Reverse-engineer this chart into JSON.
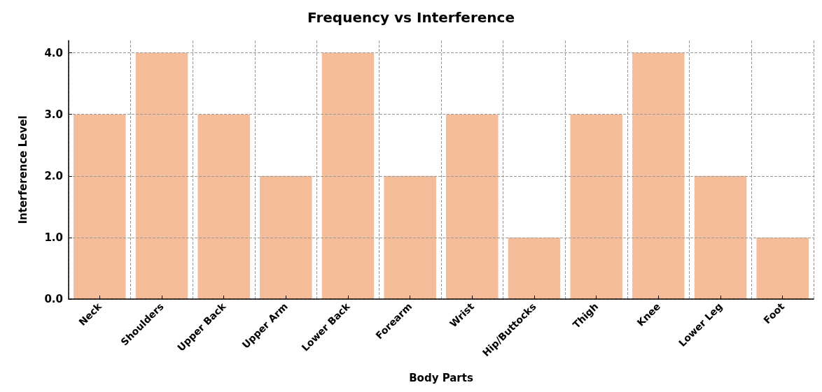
{
  "chart_data": {
    "type": "bar",
    "title": "Frequency vs Interference",
    "xlabel": "Body Parts",
    "ylabel": "Interference Level",
    "categories": [
      "Neck",
      "Shoulders",
      "Upper Back",
      "Upper Arm",
      "Lower Back",
      "Forearm",
      "Wrist",
      "Hip/Buttocks",
      "Thigh",
      "Knee",
      "Lower Leg",
      "Foot"
    ],
    "values": [
      3,
      4,
      3,
      2,
      4,
      2,
      3,
      1,
      3,
      4,
      2,
      1
    ],
    "color": "#f4bc98",
    "ylim": [
      0,
      4.2
    ],
    "yticks": [
      {
        "value": 0,
        "label": "0.0"
      },
      {
        "value": 1,
        "label": "1.0"
      },
      {
        "value": 2,
        "label": "2.0"
      },
      {
        "value": 3,
        "label": "3.0"
      },
      {
        "value": 4,
        "label": "4.0"
      }
    ],
    "grid": true,
    "line_style": "dashed"
  }
}
